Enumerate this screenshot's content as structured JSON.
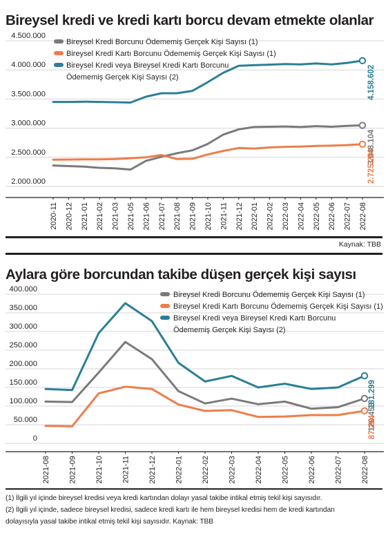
{
  "charts": [
    {
      "title": "Bireysel kredi ve kredi kartı borcu devam etmekte olanlar",
      "source": "Kaynak: TBB"
    },
    {
      "title": "Aylara göre borcundan takibe düşen gerçek kişi sayısı"
    }
  ],
  "footnotes": {
    "note1": "(1) İlgili yıl içinde bireysel kredisi veya kredi kartından dolayı yasal takibe intikal etmiş tekil kişi sayısıdır.",
    "note2": "(2) İlgili yıl içinde, sadece bireysel kredisi, sadece kredi kartı ile hem bireysel kredisi hem de kredi kartından",
    "note3": "dolayısıyla yasal takibe intikal etmiş tekil kişi sayısıdır. Kaynak: TBB"
  },
  "colors": {
    "gray": "#7a7a7a",
    "orange": "#ee7d4a",
    "teal": "#2a7f96",
    "grid": "#d6d6d6"
  },
  "chart_data": [
    {
      "type": "line",
      "title": "Bireysel kredi ve kredi kartı borcu devam etmekte olanlar",
      "ylim": [
        2000000,
        4500000
      ],
      "yticks": [
        "4.500.000",
        "4.000.000",
        "3.500.000",
        "3.000.000",
        "2.500.000",
        "2.000.000"
      ],
      "ytick_values": [
        4500000,
        4000000,
        3500000,
        3000000,
        2500000,
        2000000
      ],
      "categories": [
        "2020-11",
        "2020-12",
        "2021-01",
        "2021-02",
        "2021-03",
        "2021-05",
        "2021-06",
        "2021-07",
        "2021-08",
        "2021-09",
        "2021-10",
        "2021-11",
        "2021-12",
        "2022-01",
        "2022-02",
        "2022-03",
        "2022-04",
        "2022-05",
        "2022-06",
        "2022-07",
        "2022-08"
      ],
      "legend_position": "top-left",
      "grid": "horizontal",
      "series": [
        {
          "name": "Bireysel Kredi Borcunu Ödememiş Gerçek Kişi Sayısı (1)",
          "color": "gray",
          "values": [
            2360000,
            2350000,
            2340000,
            2320000,
            2310000,
            2290000,
            2440000,
            2510000,
            2570000,
            2620000,
            2730000,
            2890000,
            2980000,
            3020000,
            3025000,
            3030000,
            3020000,
            3035000,
            3025000,
            3040000,
            3048104
          ],
          "end_label": "3.048.104"
        },
        {
          "name": "Bireysel Kredi Kartı Borcunu Ödememiş Gerçek Kişi Sayısı (1)",
          "color": "orange",
          "values": [
            2460000,
            2462000,
            2465000,
            2466000,
            2470000,
            2485000,
            2500000,
            2540000,
            2470000,
            2475000,
            2550000,
            2610000,
            2660000,
            2650000,
            2670000,
            2680000,
            2685000,
            2695000,
            2700000,
            2710000,
            2725288
          ],
          "end_label": "2.725.288"
        },
        {
          "name_lines": [
            "Bireysel Kredi veya Bireysel Kredi Kartı Borcunu",
            "Ödememiş Gerçek Kişi Sayısı (2)"
          ],
          "color": "teal",
          "values": [
            3450000,
            3450000,
            3455000,
            3450000,
            3445000,
            3440000,
            3540000,
            3600000,
            3600000,
            3640000,
            3790000,
            3950000,
            4070000,
            4080000,
            4090000,
            4100000,
            4095000,
            4110000,
            4095000,
            4120000,
            4158602
          ],
          "end_label": "4.158.602"
        }
      ]
    },
    {
      "type": "line",
      "title": "Aylara göre borcundan takibe düşen gerçek kişi sayısı",
      "ylim": [
        0,
        400000
      ],
      "yticks": [
        "400.000",
        "350.000",
        "300.000",
        "250.000",
        "200.000",
        "150.000",
        "100.000",
        "50.000",
        "0"
      ],
      "ytick_values": [
        400000,
        350000,
        300000,
        250000,
        200000,
        150000,
        100000,
        50000,
        0
      ],
      "categories": [
        "2021-08",
        "2021-09",
        "2021-10",
        "2021-11",
        "2021-12",
        "2022-01",
        "2022-02",
        "2022-03",
        "2022-04",
        "2022-05",
        "2022-06",
        "2022-07",
        "2022-08"
      ],
      "legend_position": "top-right",
      "grid": "horizontal",
      "series": [
        {
          "name": "Bireysel Kredi Borcunu Ödememiş Gerçek Kişi Sayısı (1)",
          "color": "gray",
          "values": [
            112000,
            111000,
            190000,
            272000,
            226000,
            140000,
            107000,
            120000,
            105000,
            112000,
            93000,
            97000,
            120453
          ],
          "end_label": "120.453"
        },
        {
          "name": "Bireysel Kredi Kartı Borcunu Ödememiş Gerçek Kişi Sayısı (1)",
          "color": "orange",
          "values": [
            47000,
            46000,
            134000,
            152000,
            146000,
            104000,
            87000,
            89000,
            71000,
            72000,
            76000,
            76000,
            87264
          ],
          "end_label": "87.264"
        },
        {
          "name_lines": [
            "Bireysel Kredi veya Bireysel Kredi Kartı Borcunu",
            "Ödememiş Gerçek Kişi Sayısı (2)"
          ],
          "color": "teal",
          "values": [
            146000,
            143000,
            296000,
            376000,
            328000,
            216000,
            166000,
            181000,
            150000,
            160000,
            146000,
            150000,
            181299
          ],
          "end_label": "181.299"
        }
      ]
    }
  ]
}
